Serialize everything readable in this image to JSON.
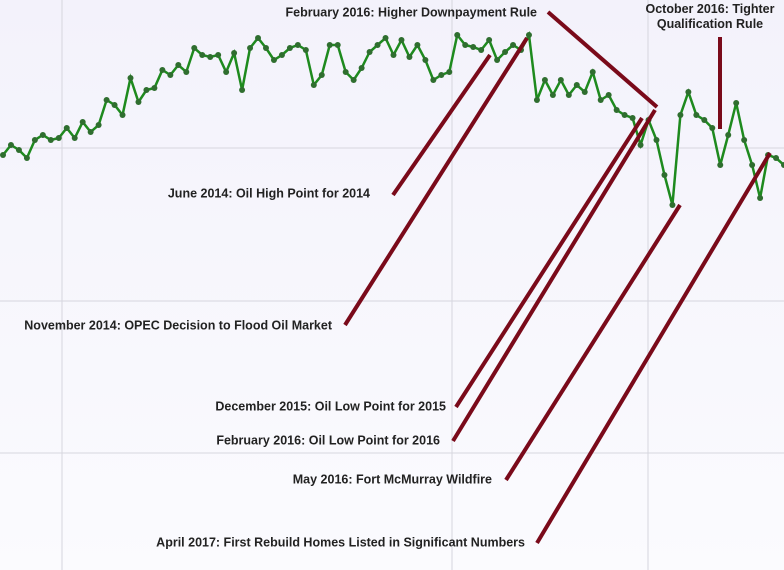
{
  "chart_data": {
    "type": "line",
    "color": "#1e8a1e",
    "marker_color": "#2f6e2f",
    "grid": true,
    "ylim": [
      0,
      570
    ],
    "yticks": [
      117,
      269,
      422
    ],
    "values": [
      415,
      425,
      420,
      412,
      430,
      435,
      430,
      432,
      442,
      432,
      448,
      438,
      445,
      470,
      465,
      455,
      492,
      468,
      480,
      482,
      500,
      495,
      505,
      498,
      522,
      515,
      513,
      515,
      498,
      517,
      480,
      522,
      532,
      522,
      510,
      515,
      522,
      525,
      520,
      485,
      495,
      525,
      525,
      498,
      490,
      502,
      518,
      525,
      532,
      515,
      530,
      513,
      525,
      510,
      490,
      495,
      498,
      535,
      525,
      523,
      520,
      530,
      510,
      518,
      525,
      520,
      535,
      470,
      490,
      475,
      490,
      475,
      485,
      478,
      498,
      470,
      475,
      460,
      455,
      452,
      425,
      450,
      430,
      395,
      365,
      455,
      478,
      455,
      450,
      442,
      405,
      435,
      467,
      430,
      405,
      372,
      415,
      412,
      405
    ],
    "annotations": [
      "February 2016: Higher Downpayment Rule",
      "October 2016: Tighter Qualification Rule",
      "June 2014: Oil High Point for 2014",
      "November 2014: OPEC Decision to Flood Oil Market",
      "December 2015: Oil Low Point for 2015",
      "February 2016: Oil Low Point for 2016",
      "May 2016: Fort McMurray Wildfire",
      "April 2017: First Rebuild Homes Listed in Significant Numbers"
    ],
    "annotation_color": "#7a0a1a"
  }
}
